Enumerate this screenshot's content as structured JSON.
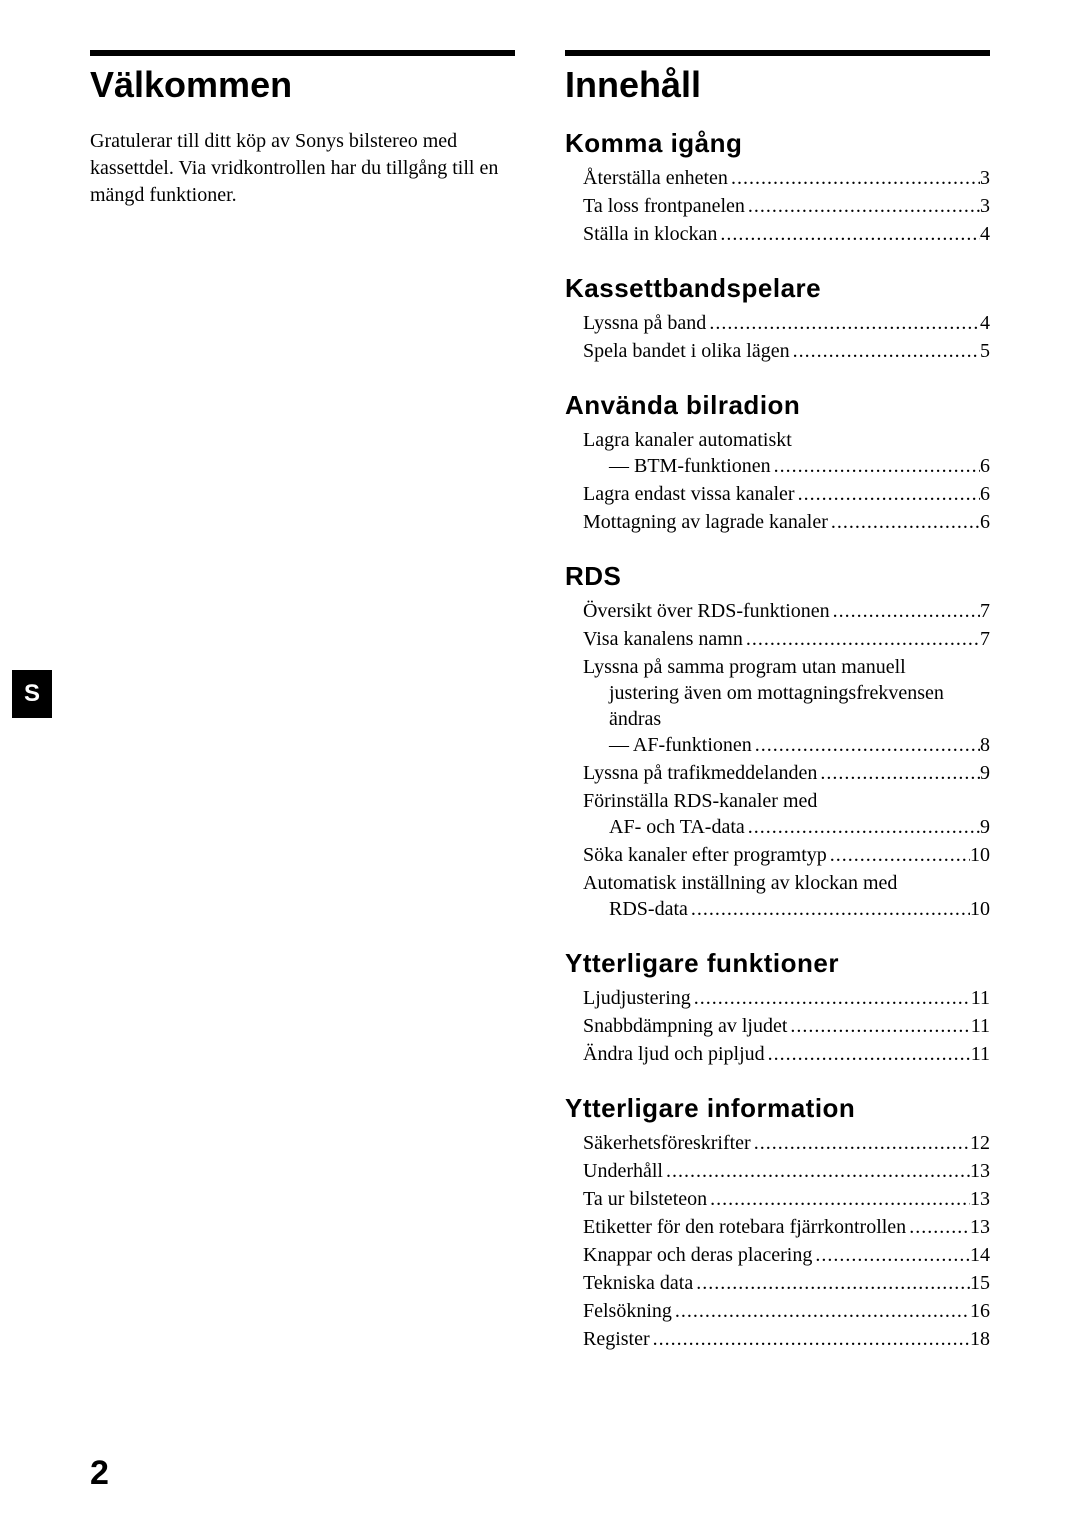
{
  "side_tab": "S",
  "page_number": "2",
  "left": {
    "title": "Välkommen",
    "intro": "Gratulerar till ditt köp av Sonys bilstereo med kassettdel. Via vridkontrollen har du tillgång till en mängd funktioner."
  },
  "right": {
    "title": "Innehåll",
    "sections": [
      {
        "heading": "Komma igång",
        "items": [
          {
            "label": "Återställa enheten",
            "page": "3"
          },
          {
            "label": "Ta loss frontpanelen",
            "page": "3"
          },
          {
            "label": "Ställa in klockan",
            "page": "4"
          }
        ]
      },
      {
        "heading": "Kassettbandspelare",
        "items": [
          {
            "label": "Lyssna på band",
            "page": "4"
          },
          {
            "label": "Spela bandet i olika lägen",
            "page": "5"
          }
        ]
      },
      {
        "heading": "Använda bilradion",
        "items": [
          {
            "label": "Lagra kanaler automatiskt",
            "cont": "— BTM-funktionen",
            "page": "6"
          },
          {
            "label": "Lagra endast vissa kanaler",
            "page": "6"
          },
          {
            "label": "Mottagning av lagrade kanaler",
            "page": "6"
          }
        ]
      },
      {
        "heading": "RDS",
        "items": [
          {
            "label": "Översikt över RDS-funktionen",
            "page": "7"
          },
          {
            "label": "Visa kanalens namn",
            "page": "7"
          },
          {
            "label": "Lyssna på samma program utan manuell",
            "cont_plain": "justering även om mottagningsfrekvensen ändras",
            "cont": "— AF-funktionen",
            "page": "8"
          },
          {
            "label": "Lyssna på trafikmeddelanden",
            "page": "9"
          },
          {
            "label": "Förinställa RDS-kanaler med",
            "cont": "AF- och TA-data",
            "page": "9"
          },
          {
            "label": "Söka kanaler efter programtyp",
            "page": "10"
          },
          {
            "label": "Automatisk inställning av klockan med",
            "cont": "RDS-data",
            "page": "10"
          }
        ]
      },
      {
        "heading": "Ytterligare funktioner",
        "items": [
          {
            "label": "Ljudjustering",
            "page": "11"
          },
          {
            "label": "Snabbdämpning av ljudet",
            "page": "11"
          },
          {
            "label": "Ändra ljud och pipljud",
            "page": "11"
          }
        ]
      },
      {
        "heading": "Ytterligare information",
        "items": [
          {
            "label": "Säkerhetsföreskrifter",
            "page": "12"
          },
          {
            "label": "Underhåll",
            "page": "13"
          },
          {
            "label": "Ta ur bilsteteon",
            "page": "13"
          },
          {
            "label": "Etiketter för den rotebara fjärrkontrollen",
            "page": "13"
          },
          {
            "label": "Knappar och deras placering",
            "page": "14"
          },
          {
            "label": "Tekniska data",
            "page": "15"
          },
          {
            "label": "Felsökning",
            "page": "16"
          },
          {
            "label": "Register",
            "page": "18"
          }
        ]
      }
    ]
  },
  "dots": "...................................................................................................."
}
